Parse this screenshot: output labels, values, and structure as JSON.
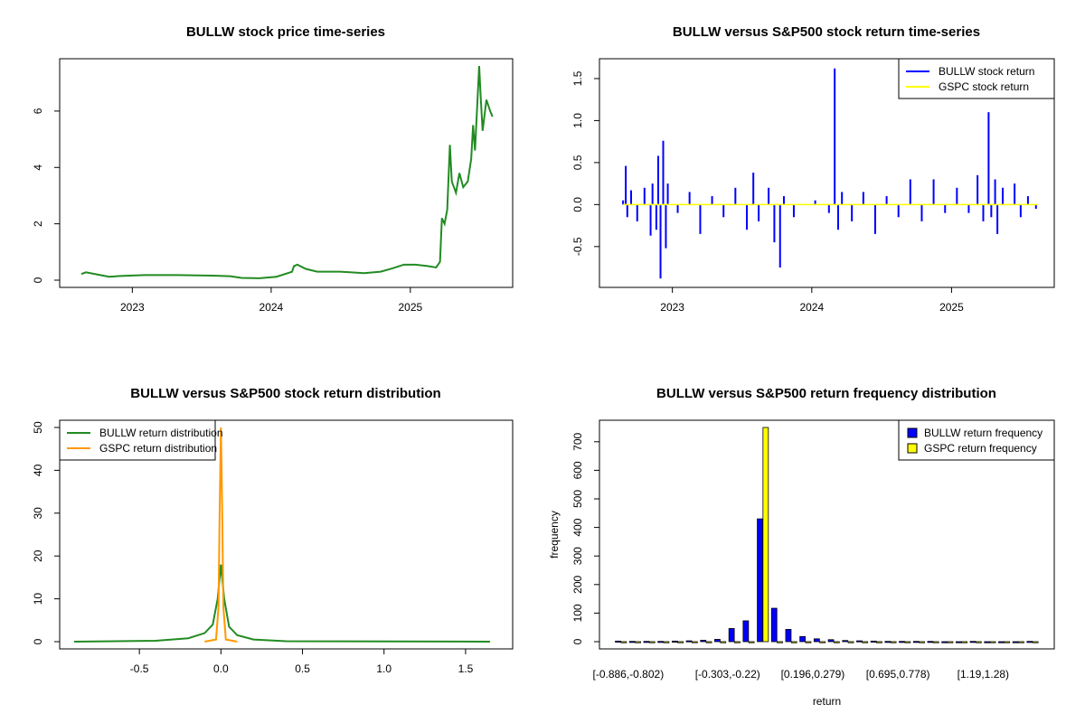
{
  "chart_data": [
    {
      "type": "line",
      "title": "BULLW stock price time-series",
      "xlabel": "",
      "ylabel": "",
      "x_ticks": [
        "2023",
        "2024",
        "2025"
      ],
      "y_ticks": [
        "0",
        "2",
        "4",
        "6"
      ],
      "xlim": [
        "2022-08",
        "2025-08"
      ],
      "ylim": [
        0,
        7.6
      ],
      "series": [
        {
          "color": "#228b22",
          "points": [
            [
              "2022-08-20",
              0.22
            ],
            [
              "2022-09-01",
              0.28
            ],
            [
              "2022-10-01",
              0.2
            ],
            [
              "2022-11-01",
              0.12
            ],
            [
              "2022-12-01",
              0.15
            ],
            [
              "2023-02-01",
              0.18
            ],
            [
              "2023-05-01",
              0.18
            ],
            [
              "2023-08-01",
              0.16
            ],
            [
              "2023-09-15",
              0.14
            ],
            [
              "2023-10-15",
              0.08
            ],
            [
              "2023-12-01",
              0.07
            ],
            [
              "2024-01-15",
              0.12
            ],
            [
              "2024-02-25",
              0.3
            ],
            [
              "2024-03-01",
              0.5
            ],
            [
              "2024-03-10",
              0.55
            ],
            [
              "2024-04-01",
              0.4
            ],
            [
              "2024-05-01",
              0.3
            ],
            [
              "2024-07-01",
              0.3
            ],
            [
              "2024-09-01",
              0.25
            ],
            [
              "2024-10-15",
              0.3
            ],
            [
              "2024-11-15",
              0.42
            ],
            [
              "2024-12-15",
              0.55
            ],
            [
              "2025-01-15",
              0.55
            ],
            [
              "2025-02-15",
              0.5
            ],
            [
              "2025-03-10",
              0.45
            ],
            [
              "2025-03-20",
              0.65
            ],
            [
              "2025-03-25",
              2.2
            ],
            [
              "2025-04-01",
              2.0
            ],
            [
              "2025-04-08",
              2.5
            ],
            [
              "2025-04-15",
              4.8
            ],
            [
              "2025-04-20",
              3.5
            ],
            [
              "2025-05-01",
              3.1
            ],
            [
              "2025-05-10",
              3.8
            ],
            [
              "2025-05-20",
              3.3
            ],
            [
              "2025-06-01",
              3.5
            ],
            [
              "2025-06-10",
              4.3
            ],
            [
              "2025-06-15",
              5.5
            ],
            [
              "2025-06-20",
              4.6
            ],
            [
              "2025-07-01",
              7.6
            ],
            [
              "2025-07-05",
              6.5
            ],
            [
              "2025-07-10",
              5.3
            ],
            [
              "2025-07-20",
              6.4
            ],
            [
              "2025-07-30",
              6.0
            ],
            [
              "2025-08-05",
              5.8
            ]
          ]
        }
      ]
    },
    {
      "type": "line",
      "title": "BULLW versus S&P500 stock return time-series",
      "xlabel": "",
      "ylabel": "",
      "x_ticks": [
        "2023",
        "2024",
        "2025"
      ],
      "y_ticks": [
        "-0.5",
        "0.0",
        "0.5",
        "1.0",
        "1.5"
      ],
      "xlim": [
        "2022-08",
        "2025-08"
      ],
      "ylim": [
        -0.9,
        1.65
      ],
      "legend": {
        "position": "top-right",
        "entries": [
          "BULLW stock return",
          "GSPC stock return"
        ]
      },
      "series": [
        {
          "name": "BULLW stock return",
          "color": "#0000ff",
          "points": [
            [
              "2022-08-25",
              0.05
            ],
            [
              "2022-09-01",
              0.46
            ],
            [
              "2022-09-05",
              -0.15
            ],
            [
              "2022-09-15",
              0.17
            ],
            [
              "2022-10-01",
              -0.2
            ],
            [
              "2022-10-20",
              0.2
            ],
            [
              "2022-11-05",
              -0.37
            ],
            [
              "2022-11-10",
              0.25
            ],
            [
              "2022-11-20",
              -0.3
            ],
            [
              "2022-11-25",
              0.58
            ],
            [
              "2022-12-01",
              -0.88
            ],
            [
              "2022-12-08",
              0.76
            ],
            [
              "2022-12-15",
              -0.52
            ],
            [
              "2022-12-20",
              0.25
            ],
            [
              "2023-01-15",
              -0.1
            ],
            [
              "2023-02-15",
              0.15
            ],
            [
              "2023-03-15",
              -0.35
            ],
            [
              "2023-04-15",
              0.1
            ],
            [
              "2023-05-15",
              -0.15
            ],
            [
              "2023-06-15",
              0.2
            ],
            [
              "2023-07-15",
              -0.3
            ],
            [
              "2023-08-01",
              0.38
            ],
            [
              "2023-08-15",
              -0.2
            ],
            [
              "2023-09-10",
              0.2
            ],
            [
              "2023-09-25",
              -0.45
            ],
            [
              "2023-10-10",
              -0.75
            ],
            [
              "2023-10-20",
              0.1
            ],
            [
              "2023-11-15",
              -0.15
            ],
            [
              "2024-01-10",
              0.05
            ],
            [
              "2024-02-15",
              -0.1
            ],
            [
              "2024-03-01",
              1.62
            ],
            [
              "2024-03-10",
              -0.3
            ],
            [
              "2024-03-20",
              0.15
            ],
            [
              "2024-04-15",
              -0.2
            ],
            [
              "2024-05-15",
              0.15
            ],
            [
              "2024-06-15",
              -0.35
            ],
            [
              "2024-07-15",
              0.1
            ],
            [
              "2024-08-15",
              -0.15
            ],
            [
              "2024-09-15",
              0.3
            ],
            [
              "2024-10-15",
              -0.2
            ],
            [
              "2024-11-15",
              0.3
            ],
            [
              "2024-12-15",
              -0.1
            ],
            [
              "2025-01-15",
              0.2
            ],
            [
              "2025-02-15",
              -0.1
            ],
            [
              "2025-03-10",
              0.35
            ],
            [
              "2025-03-25",
              -0.2
            ],
            [
              "2025-04-08",
              1.1
            ],
            [
              "2025-04-15",
              -0.15
            ],
            [
              "2025-04-25",
              0.3
            ],
            [
              "2025-05-01",
              -0.35
            ],
            [
              "2025-05-15",
              0.2
            ],
            [
              "2025-06-15",
              0.25
            ],
            [
              "2025-07-01",
              -0.15
            ],
            [
              "2025-07-20",
              0.1
            ],
            [
              "2025-08-10",
              -0.05
            ]
          ]
        },
        {
          "name": "GSPC stock return",
          "color": "#ffff00",
          "points": [
            [
              "2022-08-25",
              0.0
            ],
            [
              "2025-08-15",
              0.0
            ]
          ]
        }
      ]
    },
    {
      "type": "line",
      "title": "BULLW versus S&P500 stock return distribution",
      "xlabel": "",
      "ylabel": "",
      "x_ticks": [
        "-0.5",
        "0.0",
        "0.5",
        "1.0",
        "1.5"
      ],
      "y_ticks": [
        "0",
        "10",
        "20",
        "30",
        "40",
        "50"
      ],
      "xlim": [
        -0.9,
        1.7
      ],
      "ylim": [
        0,
        50
      ],
      "legend": {
        "position": "top-left",
        "entries": [
          "BULLW return distribution",
          "GSPC return distribution"
        ]
      },
      "series": [
        {
          "name": "BULLW return distribution",
          "color": "#228b22",
          "points": [
            [
              -0.9,
              0.0
            ],
            [
              -0.4,
              0.2
            ],
            [
              -0.2,
              0.8
            ],
            [
              -0.1,
              2.0
            ],
            [
              -0.05,
              4.0
            ],
            [
              -0.02,
              10.0
            ],
            [
              0.0,
              18.0
            ],
            [
              0.02,
              10.0
            ],
            [
              0.05,
              3.5
            ],
            [
              0.1,
              1.5
            ],
            [
              0.2,
              0.5
            ],
            [
              0.4,
              0.1
            ],
            [
              1.65,
              0.0
            ]
          ]
        },
        {
          "name": "GSPC return distribution",
          "color": "#ff9900",
          "points": [
            [
              -0.1,
              0.0
            ],
            [
              -0.03,
              0.5
            ],
            [
              -0.015,
              8.0
            ],
            [
              -0.008,
              30.0
            ],
            [
              0.0,
              50.0
            ],
            [
              0.008,
              30.0
            ],
            [
              0.015,
              8.0
            ],
            [
              0.03,
              0.5
            ],
            [
              0.1,
              0.0
            ]
          ]
        }
      ]
    },
    {
      "type": "bar",
      "title": "BULLW versus S&P500 return frequency distribution",
      "xlabel": "return",
      "ylabel": "frequency",
      "x_ticks": [
        "[-0.886,-0.802)",
        "[-0.303,-0.22)",
        "[0.196,0.279)",
        "[0.695,0.778)",
        "[1.19,1.28)"
      ],
      "tick_bins": [
        0,
        7,
        13,
        19,
        25
      ],
      "y_ticks": [
        "0",
        "100",
        "200",
        "300",
        "400",
        "500",
        "600",
        "700"
      ],
      "ylim": [
        0,
        750
      ],
      "legend": {
        "position": "top-right",
        "entries": [
          "BULLW return frequency",
          "GSPC return frequency"
        ]
      },
      "bins": 30,
      "series": [
        {
          "name": "BULLW return frequency",
          "color": "#0000ff",
          "values": [
            2,
            1,
            1,
            1,
            2,
            3,
            5,
            8,
            46,
            73,
            430,
            117,
            43,
            18,
            10,
            7,
            4,
            3,
            2,
            1,
            1,
            1,
            1,
            0,
            0,
            1,
            0,
            0,
            0,
            1
          ]
        },
        {
          "name": "GSPC return frequency",
          "color": "#ffff00",
          "values": [
            0,
            0,
            0,
            0,
            0,
            0,
            0,
            0,
            0,
            0,
            750,
            0,
            0,
            0,
            0,
            0,
            0,
            0,
            0,
            0,
            0,
            0,
            0,
            0,
            0,
            0,
            0,
            0,
            0,
            0
          ]
        }
      ]
    }
  ]
}
